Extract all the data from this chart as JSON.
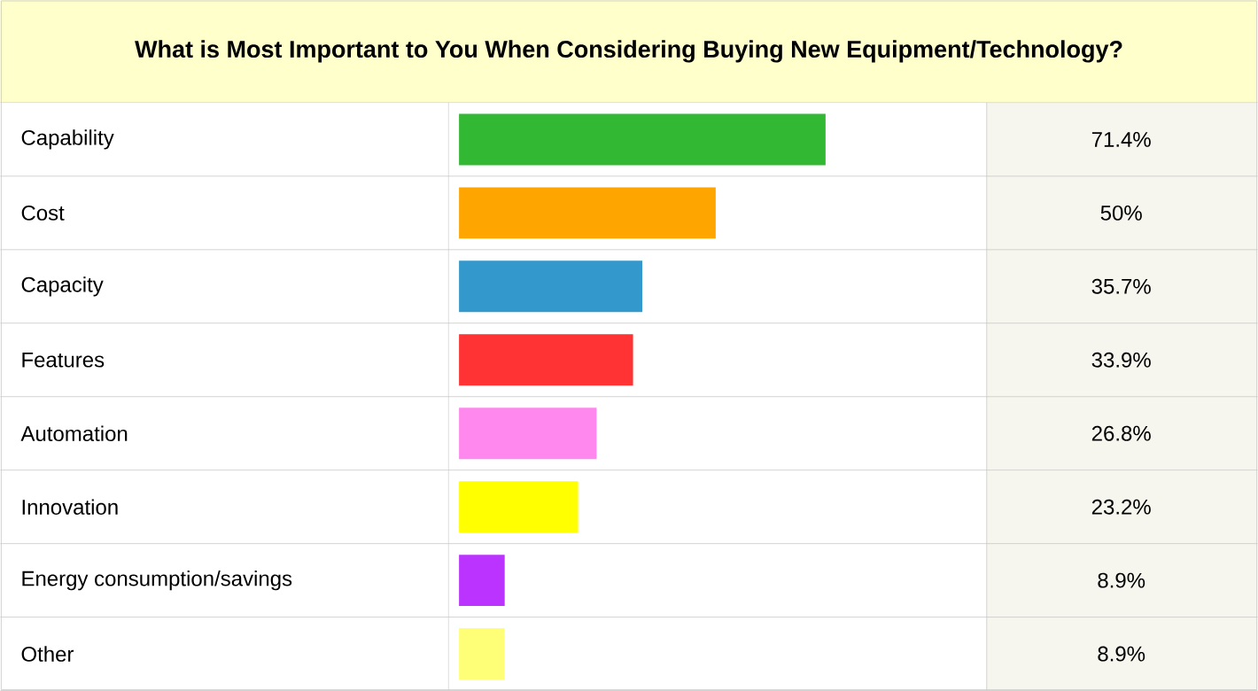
{
  "chart_data": {
    "type": "bar",
    "orientation": "horizontal",
    "title": "What is Most Important to You When Considering Buying New Equipment/Technology?",
    "categories": [
      "Capability",
      "Cost",
      "Capacity",
      "Features",
      "Automation",
      "Innovation",
      "Energy consumption/savings",
      "Other"
    ],
    "values": [
      71.4,
      50,
      35.7,
      33.9,
      26.8,
      23.2,
      8.9,
      8.9
    ],
    "value_labels": [
      "71.4%",
      "50%",
      "35.7%",
      "33.9%",
      "26.8%",
      "23.2%",
      "8.9%",
      "8.9%"
    ],
    "colors": [
      "#33b833",
      "#ffa500",
      "#3399cc",
      "#ff3333",
      "#ff88ee",
      "#ffff00",
      "#bb33ff",
      "#ffff77"
    ]
  }
}
